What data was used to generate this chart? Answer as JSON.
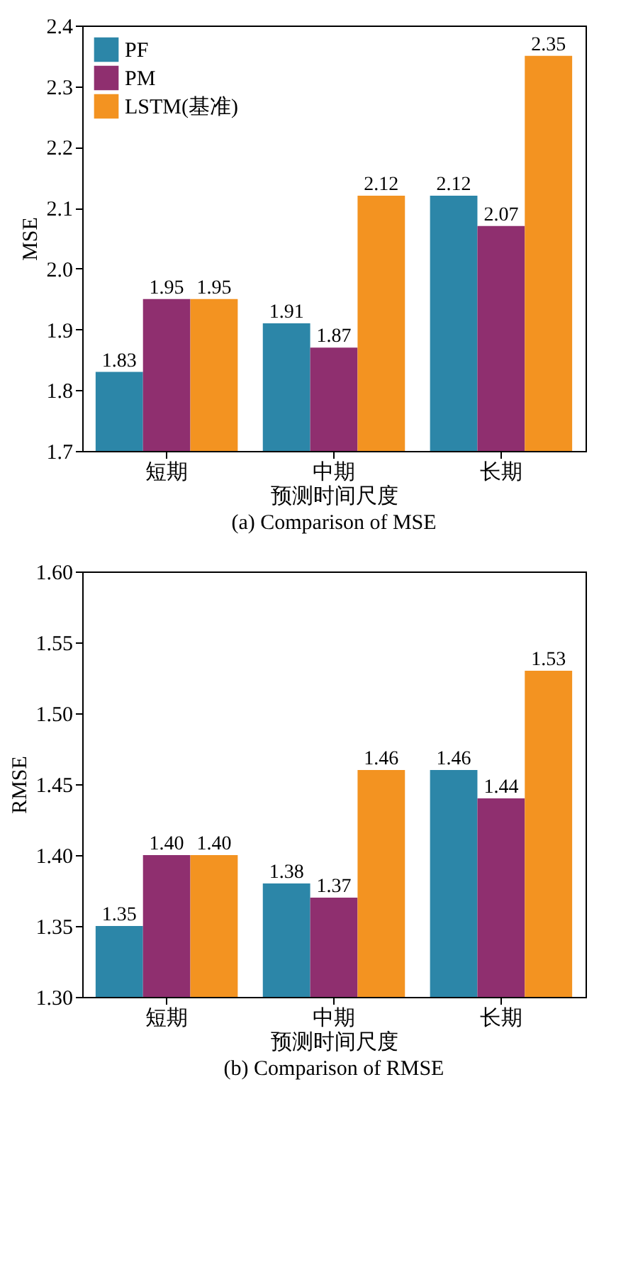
{
  "chart_data": [
    {
      "type": "bar",
      "title": "(a) Comparison of MSE",
      "xlabel": "预测时间尺度",
      "ylabel": "MSE",
      "categories": [
        "短期",
        "中期",
        "长期"
      ],
      "series": [
        {
          "name": "PF",
          "color": "#2c86a8",
          "values": [
            1.83,
            1.91,
            2.12
          ],
          "value_labels": [
            "1.83",
            "1.91",
            "2.12"
          ]
        },
        {
          "name": "PM",
          "color": "#8f2f6f",
          "values": [
            1.95,
            1.87,
            2.07
          ],
          "value_labels": [
            "1.95",
            "1.87",
            "2.07"
          ]
        },
        {
          "name": "LSTM(基准)",
          "color": "#f39321",
          "values": [
            1.95,
            2.12,
            2.35
          ],
          "value_labels": [
            "1.95",
            "2.12",
            "2.35"
          ]
        }
      ],
      "ylim": [
        1.7,
        2.4
      ],
      "yticks": [
        {
          "value": 1.7,
          "label": "1.7"
        },
        {
          "value": 1.8,
          "label": "1.8"
        },
        {
          "value": 1.9,
          "label": "1.9"
        },
        {
          "value": 2.0,
          "label": "2.0"
        },
        {
          "value": 2.1,
          "label": "2.1"
        },
        {
          "value": 2.2,
          "label": "2.2"
        },
        {
          "value": 2.3,
          "label": "2.3"
        },
        {
          "value": 2.4,
          "label": "2.4"
        }
      ],
      "legend": "top left",
      "grid": false
    },
    {
      "type": "bar",
      "title": "(b) Comparison of RMSE",
      "xlabel": "预测时间尺度",
      "ylabel": "RMSE",
      "categories": [
        "短期",
        "中期",
        "长期"
      ],
      "series": [
        {
          "name": "PF",
          "color": "#2c86a8",
          "values": [
            1.35,
            1.38,
            1.46
          ],
          "value_labels": [
            "1.35",
            "1.38",
            "1.46"
          ]
        },
        {
          "name": "PM",
          "color": "#8f2f6f",
          "values": [
            1.4,
            1.37,
            1.44
          ],
          "value_labels": [
            "1.40",
            "1.37",
            "1.44"
          ]
        },
        {
          "name": "LSTM(基准)",
          "color": "#f39321",
          "values": [
            1.4,
            1.46,
            1.53
          ],
          "value_labels": [
            "1.40",
            "1.46",
            "1.53"
          ]
        }
      ],
      "ylim": [
        1.3,
        1.6
      ],
      "yticks": [
        {
          "value": 1.3,
          "label": "1.30"
        },
        {
          "value": 1.35,
          "label": "1.35"
        },
        {
          "value": 1.4,
          "label": "1.40"
        },
        {
          "value": 1.45,
          "label": "1.45"
        },
        {
          "value": 1.5,
          "label": "1.50"
        },
        {
          "value": 1.55,
          "label": "1.55"
        },
        {
          "value": 1.6,
          "label": "1.60"
        }
      ],
      "legend": "top left",
      "grid": false
    }
  ]
}
